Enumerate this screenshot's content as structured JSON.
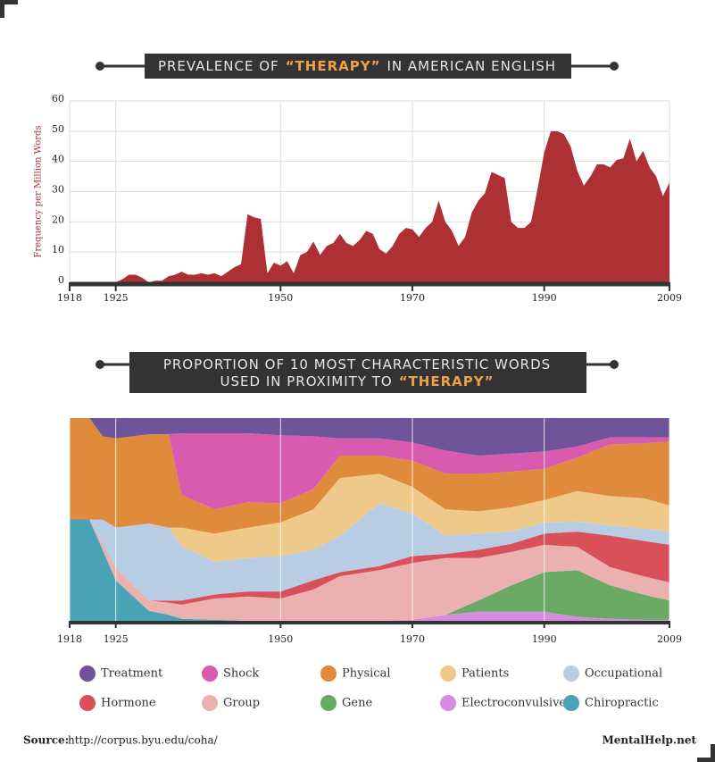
{
  "chart_data": [
    {
      "type": "area",
      "title": [
        "PREVALENCE OF",
        "“THERAPY”",
        "IN AMERICAN ENGLISH"
      ],
      "y_label": "Frequency per Million Words",
      "x": [
        1925,
        1926,
        1927,
        1928,
        1929,
        1930,
        1931,
        1932,
        1933,
        1934,
        1935,
        1936,
        1937,
        1938,
        1939,
        1940,
        1941,
        1942,
        1943,
        1944,
        1945,
        1946,
        1947,
        1948,
        1949,
        1950,
        1951,
        1952,
        1953,
        1954,
        1955,
        1956,
        1957,
        1958,
        1959,
        1960,
        1961,
        1962,
        1963,
        1964,
        1965,
        1966,
        1967,
        1968,
        1969,
        1970,
        1971,
        1972,
        1973,
        1974,
        1975,
        1976,
        1977,
        1978,
        1979,
        1980,
        1981,
        1982,
        1983,
        1984,
        1985,
        1986,
        1987,
        1988,
        1989,
        1990,
        1991,
        1992,
        1993,
        1994,
        1995,
        1996,
        1997,
        1998,
        1999,
        2000,
        2001,
        2002,
        2003,
        2004,
        2005,
        2006,
        2007,
        2008,
        2009
      ],
      "values": [
        0,
        1,
        2.5,
        2.5,
        1.5,
        0,
        0.5,
        0.5,
        2,
        2.5,
        3.5,
        2.5,
        2.5,
        3,
        2.5,
        3,
        2,
        3.5,
        5,
        6,
        22.5,
        21.5,
        21,
        3,
        6.5,
        5.5,
        7,
        3,
        9,
        10,
        13.5,
        9,
        12,
        13,
        16,
        13,
        12,
        14,
        17,
        16,
        11,
        9.5,
        12,
        16,
        18,
        17.5,
        15,
        18,
        20,
        27,
        20,
        17,
        12,
        15,
        23,
        27,
        29.5,
        36.5,
        35.5,
        34.5,
        20,
        18,
        18,
        20,
        31,
        43,
        50,
        50,
        49,
        45,
        37,
        32,
        35,
        39,
        39,
        38,
        40.5,
        41,
        47.5,
        40,
        43.5,
        38,
        35,
        28.5,
        33
      ],
      "color": "#ad3034",
      "xlim": [
        1918,
        2009
      ],
      "xticks": [
        1918,
        1925,
        1950,
        1970,
        1990,
        2009
      ],
      "ylim": [
        0,
        60
      ],
      "yticks": [
        0,
        10,
        20,
        30,
        40,
        50,
        60
      ],
      "grid": true
    },
    {
      "type": "stacked-area-100",
      "title": [
        "PROPORTION OF 10 MOST CHARACTERISTIC WORDS",
        "USED IN PROXIMITY TO",
        "“THERAPY”"
      ],
      "x": [
        1918,
        1921,
        1923,
        1925,
        1930,
        1933,
        1935,
        1940,
        1945,
        1950,
        1955,
        1959,
        1965,
        1970,
        1975,
        1980,
        1985,
        1990,
        1995,
        2000,
        2005,
        2009
      ],
      "xlim": [
        1918,
        2009
      ],
      "xticks": [
        1918,
        1925,
        1950,
        1970,
        1990,
        2009
      ],
      "ylim": [
        0,
        100
      ],
      "series": [
        {
          "name": "Treatment",
          "color": "#6f5499",
          "values": [
            0,
            0,
            9,
            10,
            8,
            8,
            7.5,
            7.5,
            7.5,
            8.5,
            9,
            10,
            10,
            12,
            16,
            18.5,
            17.5,
            16.5,
            14,
            9.5,
            9.5,
            9.5
          ]
        },
        {
          "name": "Shock",
          "color": "#d95bb0",
          "values": [
            0,
            0,
            0,
            0,
            0,
            0,
            30.5,
            37.5,
            34,
            33.5,
            26,
            8.5,
            8.5,
            9,
            11.5,
            9,
            9,
            8.5,
            5.5,
            3.5,
            3,
            2
          ]
        },
        {
          "name": "Physical",
          "color": "#e08a3c",
          "values": [
            50,
            50,
            41,
            44,
            44,
            46,
            16,
            12,
            12.5,
            9.5,
            10,
            11,
            9,
            13,
            17.5,
            18.5,
            17.5,
            15.5,
            16.5,
            25.5,
            27,
            31.5
          ]
        },
        {
          "name": "Patients",
          "color": "#efc98a",
          "values": [
            0,
            0,
            0,
            0,
            0,
            0,
            9,
            14,
            15,
            16.5,
            20,
            28.5,
            14.5,
            13,
            13,
            11,
            12,
            11,
            15,
            14.5,
            15,
            13
          ]
        },
        {
          "name": "Occupational",
          "color": "#b8cce4",
          "values": [
            0,
            0,
            12,
            20,
            38,
            36,
            27,
            16,
            16.5,
            17.5,
            15,
            18,
            31,
            21,
            9,
            8,
            6,
            5.5,
            5,
            5,
            6,
            6.5
          ]
        },
        {
          "name": "Hormone",
          "color": "#d9505a",
          "values": [
            0,
            0,
            0,
            0,
            0,
            1,
            2,
            2,
            2.5,
            3.5,
            4.5,
            2,
            2,
            3.5,
            2,
            4,
            4,
            5.5,
            7.5,
            15.5,
            17.5,
            18.5
          ]
        },
        {
          "name": "Group",
          "color": "#ebb0b0",
          "values": [
            0,
            0,
            3,
            6,
            5,
            6,
            7,
            10.5,
            12,
            11,
            15.5,
            22,
            25,
            28,
            28,
            21,
            16.5,
            13.5,
            11.5,
            9,
            9,
            9
          ]
        },
        {
          "name": "Gene",
          "color": "#6aaa64",
          "values": [
            0,
            0,
            0,
            0,
            0,
            0,
            0,
            0,
            0,
            0,
            0,
            0,
            0,
            0,
            0,
            5.5,
            13,
            19.5,
            23,
            16.5,
            12.5,
            9.5
          ]
        },
        {
          "name": "Electroconvulsive",
          "color": "#d48de0",
          "values": [
            0,
            0,
            0,
            0,
            0,
            0,
            0,
            0,
            0,
            0,
            0,
            0,
            0,
            0.5,
            3,
            4.5,
            4.5,
            4.5,
            2,
            1,
            0.5,
            0.5
          ]
        },
        {
          "name": "Chiropractic",
          "color": "#4aa3b5",
          "values": [
            50,
            50,
            35,
            20,
            5,
            3,
            1,
            0.5,
            0,
            0,
            0,
            0,
            0,
            0,
            0,
            0,
            0,
            0,
            0,
            0,
            0,
            0
          ]
        }
      ]
    }
  ],
  "footer": {
    "source_label": "Source:",
    "source_url": "http://corpus.byu.edu/coha/",
    "brand": "MentalHelp.net"
  }
}
